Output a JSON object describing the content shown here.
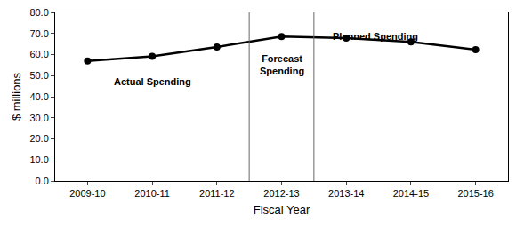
{
  "chart_data": {
    "type": "line",
    "x_label": "Fiscal Year",
    "y_label": "$ millions",
    "categories": [
      "2009-10",
      "2010-11",
      "2011-12",
      "2012-13",
      "2013-14",
      "2014-15",
      "2015-16"
    ],
    "values": [
      57.0,
      59.2,
      63.6,
      68.5,
      67.8,
      66.0,
      62.3
    ],
    "color": "#000000",
    "marker": "circle",
    "line_style": "solid",
    "ylim": [
      0,
      80
    ],
    "yticks": [
      {
        "value": 0,
        "label": "0.0"
      },
      {
        "value": 10,
        "label": "10.0"
      },
      {
        "value": 20,
        "label": "20.0"
      },
      {
        "value": 30,
        "label": "30.0"
      },
      {
        "value": 40,
        "label": "40.0"
      },
      {
        "value": 50,
        "label": "50.0"
      },
      {
        "value": 60,
        "label": "60.0"
      },
      {
        "value": 70,
        "label": "70.0"
      },
      {
        "value": 80,
        "label": "80.0"
      }
    ],
    "grid": false,
    "annotations": [
      "Actual Spending",
      "Forecast\nSpending",
      "Planned Spending"
    ]
  }
}
